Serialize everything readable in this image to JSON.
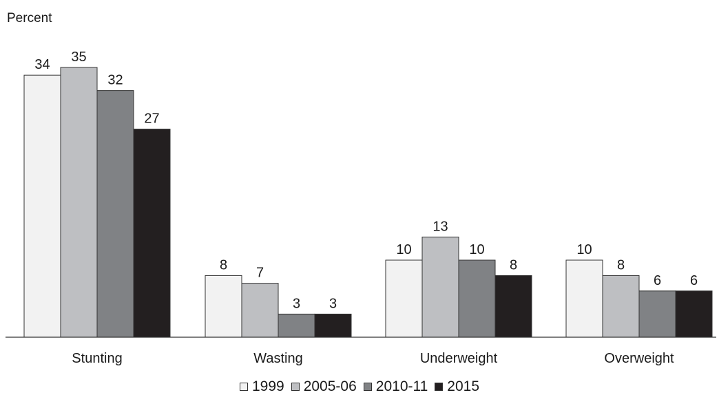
{
  "chart_data": {
    "type": "bar",
    "ylabel": "Percent",
    "xlabel": "",
    "title": "",
    "categories": [
      "Stunting",
      "Wasting",
      "Underweight",
      "Overweight"
    ],
    "series": [
      {
        "name": "1999",
        "color": "#f2f2f2",
        "values": [
          34,
          8,
          10,
          10
        ]
      },
      {
        "name": "2005-06",
        "color": "#bebfc2",
        "values": [
          35,
          7,
          13,
          8
        ]
      },
      {
        "name": "2010-11",
        "color": "#808285",
        "values": [
          32,
          3,
          10,
          6
        ]
      },
      {
        "name": "2015",
        "color": "#231f20",
        "values": [
          27,
          3,
          8,
          6
        ]
      }
    ],
    "ylim": [
      0,
      40
    ],
    "grid": false,
    "legend_position": "bottom"
  }
}
